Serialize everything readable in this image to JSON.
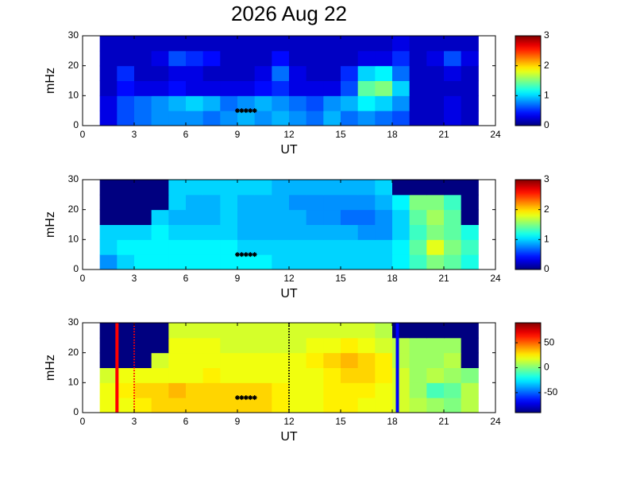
{
  "title": "2026 Aug 22",
  "chart_data": [
    {
      "type": "heatmap",
      "xlabel": "UT",
      "ylabel": "mHz",
      "xlim": [
        0,
        24
      ],
      "ylim": [
        0,
        30
      ],
      "xticks": [
        0,
        3,
        6,
        9,
        12,
        15,
        18,
        21,
        24
      ],
      "yticks": [
        0,
        10,
        20,
        30
      ],
      "x_edges": [
        1,
        2,
        3,
        4,
        5,
        6,
        7,
        8,
        9,
        10,
        11,
        12,
        13,
        14,
        15,
        16,
        17,
        18,
        19,
        20,
        21,
        22,
        23
      ],
      "y_edges": [
        0,
        5,
        10,
        15,
        20,
        25,
        30
      ],
      "clim": [
        0,
        3
      ],
      "cticks": [
        0,
        1,
        2,
        3
      ],
      "colormap": "jet",
      "z": [
        [
          0.3,
          0.6,
          0.7,
          0.8,
          0.8,
          0.8,
          0.7,
          0.8,
          0.9,
          0.8,
          0.9,
          0.8,
          0.7,
          0.9,
          0.7,
          0.8,
          0.7,
          0.6,
          0.2,
          0.2,
          0.3,
          0.2
        ],
        [
          0.3,
          0.6,
          0.7,
          0.8,
          0.9,
          1.0,
          0.9,
          0.7,
          0.8,
          0.9,
          0.8,
          0.7,
          0.6,
          0.8,
          0.9,
          1.1,
          1.0,
          0.8,
          0.2,
          0.2,
          0.3,
          0.2
        ],
        [
          0.2,
          0.4,
          0.3,
          0.3,
          0.4,
          0.3,
          0.3,
          0.3,
          0.3,
          0.4,
          0.5,
          0.3,
          0.3,
          0.3,
          0.6,
          1.4,
          1.5,
          1.0,
          0.2,
          0.2,
          0.2,
          0.2
        ],
        [
          0.2,
          0.5,
          0.2,
          0.2,
          0.3,
          0.3,
          0.2,
          0.2,
          0.2,
          0.3,
          0.7,
          0.3,
          0.2,
          0.2,
          0.5,
          1.0,
          1.1,
          0.7,
          0.2,
          0.2,
          0.3,
          0.2
        ],
        [
          0.2,
          0.2,
          0.2,
          0.3,
          0.6,
          0.5,
          0.4,
          0.2,
          0.2,
          0.2,
          0.4,
          0.2,
          0.2,
          0.2,
          0.2,
          0.3,
          0.3,
          0.5,
          0.2,
          0.3,
          0.6,
          0.3
        ],
        [
          0.2,
          0.2,
          0.2,
          0.2,
          0.2,
          0.2,
          0.2,
          0.2,
          0.2,
          0.2,
          0.2,
          0.2,
          0.2,
          0.2,
          0.2,
          0.2,
          0.2,
          0.3,
          0.2,
          0.2,
          0.2,
          0.2
        ]
      ],
      "marker_x": [
        9,
        9.25,
        9.5,
        9.75,
        10
      ],
      "marker_y": [
        5,
        5,
        5,
        5,
        5
      ],
      "marker_color": "#000000"
    },
    {
      "type": "heatmap",
      "xlabel": "UT",
      "ylabel": "mHz",
      "xlim": [
        0,
        24
      ],
      "ylim": [
        0,
        30
      ],
      "xticks": [
        0,
        3,
        6,
        9,
        12,
        15,
        18,
        21,
        24
      ],
      "yticks": [
        0,
        10,
        20,
        30
      ],
      "x_edges": [
        1,
        2,
        3,
        4,
        5,
        6,
        7,
        8,
        9,
        10,
        11,
        12,
        13,
        14,
        15,
        16,
        17,
        18,
        19,
        20,
        21,
        22,
        23
      ],
      "y_edges": [
        0,
        5,
        10,
        15,
        20,
        25,
        30
      ],
      "clim": [
        0,
        3
      ],
      "cticks": [
        0,
        1,
        2,
        3
      ],
      "colormap": "jet",
      "z": [
        [
          0.8,
          1.0,
          1.1,
          1.1,
          1.1,
          1.1,
          1.1,
          1.1,
          1.1,
          1.1,
          1.0,
          1.0,
          1.0,
          1.0,
          1.0,
          1.0,
          1.0,
          1.1,
          1.3,
          1.5,
          1.4,
          1.2
        ],
        [
          1.0,
          1.1,
          1.1,
          1.1,
          1.1,
          1.1,
          1.1,
          1.1,
          1.0,
          1.0,
          1.0,
          1.0,
          1.0,
          1.0,
          1.0,
          1.0,
          1.0,
          1.1,
          1.4,
          1.8,
          1.5,
          1.3
        ],
        [
          1.0,
          1.0,
          1.0,
          1.1,
          1.0,
          1.0,
          1.0,
          1.0,
          0.9,
          0.9,
          0.9,
          0.9,
          0.9,
          0.9,
          0.9,
          0.8,
          0.8,
          1.0,
          1.3,
          1.5,
          1.4,
          1.2
        ],
        [
          0,
          0,
          0,
          1.0,
          0.9,
          0.9,
          0.9,
          1.0,
          0.9,
          0.9,
          0.9,
          0.9,
          0.8,
          0.8,
          0.7,
          0.7,
          0.8,
          1.0,
          1.4,
          1.6,
          1.4,
          0
        ],
        [
          0,
          0,
          0,
          0,
          1.0,
          0.9,
          0.9,
          1.0,
          0.9,
          0.9,
          0.9,
          0.8,
          0.8,
          0.8,
          0.8,
          0.8,
          0.9,
          1.1,
          1.5,
          1.5,
          1.3,
          0
        ],
        [
          0,
          0,
          0,
          0,
          1.0,
          1.0,
          1.0,
          1.0,
          1.0,
          1.0,
          0.9,
          0.9,
          0.9,
          0.9,
          0.9,
          0.9,
          1.0,
          0,
          0,
          0,
          0,
          0
        ]
      ],
      "marker_x": [
        9,
        9.25,
        9.5,
        9.75,
        10
      ],
      "marker_y": [
        5,
        5,
        5,
        5,
        5
      ],
      "marker_color": "#000000"
    },
    {
      "type": "heatmap",
      "xlabel": "UT",
      "ylabel": "mHz",
      "xlim": [
        0,
        24
      ],
      "ylim": [
        0,
        30
      ],
      "xticks": [
        0,
        3,
        6,
        9,
        12,
        15,
        18,
        21,
        24
      ],
      "yticks": [
        0,
        10,
        20,
        30
      ],
      "x_edges": [
        1,
        2,
        3,
        4,
        5,
        6,
        7,
        8,
        9,
        10,
        11,
        12,
        13,
        14,
        15,
        16,
        17,
        18,
        19,
        20,
        21,
        22,
        23
      ],
      "y_edges": [
        0,
        5,
        10,
        15,
        20,
        25,
        30
      ],
      "clim": [
        -90,
        90
      ],
      "cticks": [
        -50,
        0,
        50
      ],
      "colormap": "jet",
      "z": [
        [
          20,
          20,
          25,
          30,
          30,
          30,
          30,
          30,
          30,
          30,
          25,
          20,
          20,
          25,
          25,
          20,
          20,
          15,
          10,
          5,
          0,
          10
        ],
        [
          20,
          25,
          30,
          30,
          35,
          30,
          30,
          30,
          30,
          30,
          25,
          20,
          20,
          25,
          25,
          25,
          20,
          15,
          5,
          -10,
          -5,
          10
        ],
        [
          15,
          20,
          20,
          20,
          20,
          20,
          25,
          20,
          20,
          20,
          20,
          20,
          20,
          25,
          30,
          30,
          25,
          15,
          5,
          10,
          5,
          0
        ],
        [
          -90,
          -90,
          -90,
          15,
          20,
          20,
          20,
          20,
          20,
          20,
          20,
          20,
          25,
          30,
          35,
          30,
          25,
          10,
          5,
          5,
          10,
          -90
        ],
        [
          -90,
          -90,
          -90,
          -90,
          20,
          20,
          20,
          15,
          15,
          15,
          15,
          15,
          20,
          20,
          25,
          20,
          15,
          10,
          5,
          5,
          5,
          -90
        ],
        [
          -90,
          -90,
          -90,
          -90,
          15,
          15,
          15,
          15,
          15,
          15,
          15,
          15,
          15,
          15,
          15,
          15,
          10,
          -90,
          -90,
          -90,
          -90,
          -90
        ]
      ],
      "marker_x": [
        9,
        9.25,
        9.5,
        9.75,
        10
      ],
      "marker_y": [
        5,
        5,
        5,
        5,
        5
      ],
      "marker_color": "#000000",
      "vlines": [
        {
          "x": 2,
          "color": "#ff0000",
          "style": "solid"
        },
        {
          "x": 3,
          "color": "#ff0000",
          "style": "dotted"
        },
        {
          "x": 12,
          "color": "#000000",
          "style": "dotted"
        },
        {
          "x": 18.3,
          "color": "#0000ff",
          "style": "solid"
        }
      ]
    }
  ]
}
